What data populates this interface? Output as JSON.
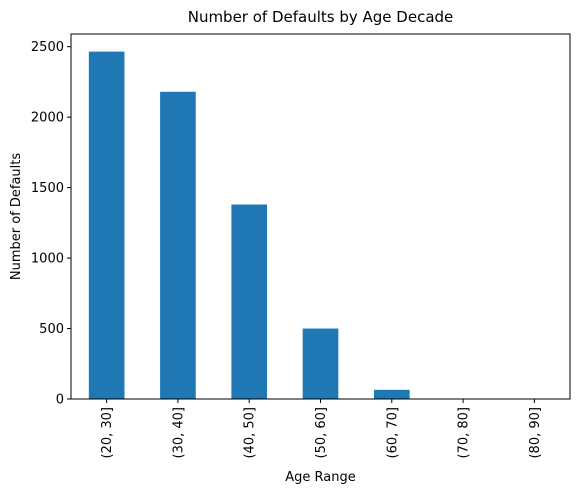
{
  "chart_data": {
    "type": "bar",
    "title": "Number of Defaults by Age Decade",
    "xlabel": "Age Range",
    "ylabel": "Number of Defaults",
    "categories": [
      "(20, 30]",
      "(30, 40]",
      "(40, 50]",
      "(50, 60]",
      "(60, 70]",
      "(70, 80]",
      "(80, 90]"
    ],
    "values": [
      2465,
      2180,
      1380,
      500,
      65,
      2,
      1
    ],
    "ylim": [
      0,
      2590
    ],
    "yticks": [
      0,
      500,
      1000,
      1500,
      2000,
      2500
    ],
    "bar_color": "#1f77b4",
    "grid": false,
    "legend": "none"
  }
}
